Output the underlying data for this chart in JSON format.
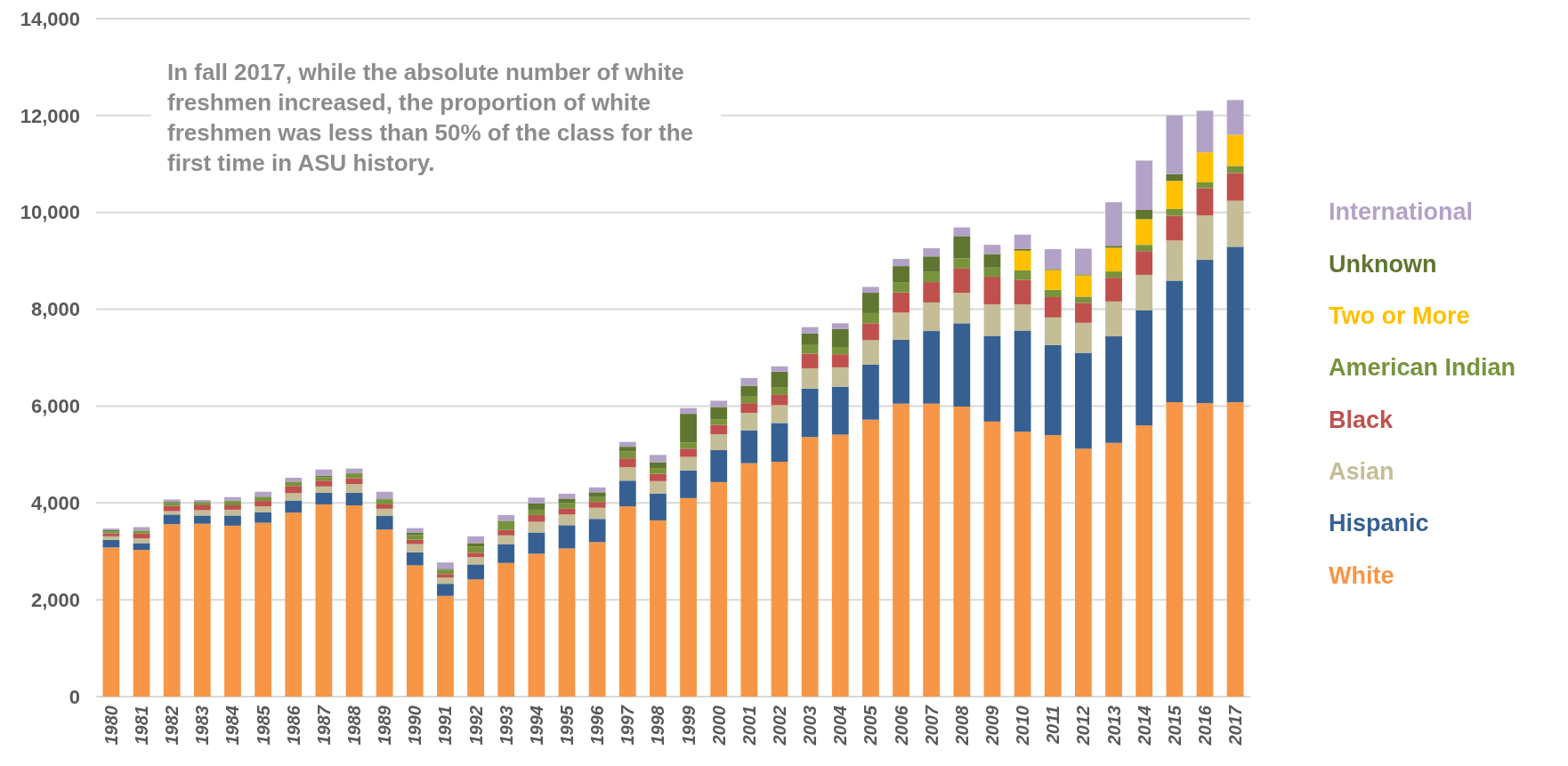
{
  "chart_data": {
    "type": "bar",
    "stacked": true,
    "categories": [
      "1980",
      "1981",
      "1982",
      "1983",
      "1984",
      "1985",
      "1986",
      "1987",
      "1988",
      "1989",
      "1990",
      "1991",
      "1992",
      "1993",
      "1994",
      "1995",
      "1996",
      "1997",
      "1998",
      "1999",
      "2000",
      "2001",
      "2002",
      "2003",
      "2004",
      "2005",
      "2006",
      "2007",
      "2008",
      "2009",
      "2010",
      "2011",
      "2012",
      "2013",
      "2014",
      "2015",
      "2016",
      "2017"
    ],
    "series": [
      {
        "name": "White",
        "color": "#f79646",
        "values": [
          3080,
          3030,
          3560,
          3570,
          3530,
          3590,
          3800,
          3970,
          3950,
          3450,
          2710,
          2080,
          2420,
          2760,
          2950,
          3060,
          3190,
          3930,
          3640,
          4100,
          4430,
          4820,
          4850,
          5360,
          5410,
          5720,
          6050,
          6050,
          5990,
          5680,
          5470,
          5400,
          5120,
          5240,
          5600,
          6080,
          6060,
          6080
        ]
      },
      {
        "name": "Hispanic",
        "color": "#376092",
        "values": [
          160,
          140,
          200,
          170,
          210,
          220,
          250,
          240,
          260,
          280,
          270,
          250,
          310,
          390,
          440,
          480,
          480,
          530,
          550,
          570,
          660,
          680,
          800,
          1000,
          990,
          1140,
          1320,
          1500,
          1720,
          1770,
          2090,
          1860,
          1980,
          2200,
          2380,
          2510,
          2960,
          3210
        ]
      },
      {
        "name": "Asian",
        "color": "#c4bd97",
        "values": [
          70,
          100,
          70,
          110,
          120,
          120,
          150,
          130,
          180,
          150,
          170,
          130,
          150,
          180,
          220,
          220,
          230,
          280,
          260,
          280,
          330,
          360,
          370,
          420,
          400,
          500,
          560,
          590,
          630,
          650,
          540,
          570,
          620,
          720,
          730,
          830,
          920,
          950
        ]
      },
      {
        "name": "Black",
        "color": "#c0504d",
        "values": [
          60,
          100,
          110,
          100,
          90,
          110,
          150,
          120,
          120,
          90,
          90,
          70,
          90,
          110,
          140,
          120,
          120,
          180,
          150,
          170,
          190,
          200,
          210,
          300,
          270,
          350,
          420,
          420,
          500,
          570,
          510,
          420,
          410,
          490,
          490,
          510,
          560,
          570
        ]
      },
      {
        "name": "American Indian",
        "color": "#77933c",
        "values": [
          40,
          60,
          60,
          50,
          80,
          80,
          80,
          70,
          100,
          100,
          100,
          90,
          130,
          180,
          110,
          120,
          100,
          140,
          120,
          130,
          120,
          150,
          150,
          180,
          150,
          210,
          210,
          210,
          210,
          190,
          190,
          150,
          130,
          130,
          130,
          140,
          120,
          150
        ]
      },
      {
        "name": "Two or More",
        "color": "#ffc000",
        "values": [
          null,
          null,
          null,
          null,
          null,
          null,
          null,
          null,
          null,
          null,
          null,
          null,
          null,
          null,
          null,
          null,
          null,
          null,
          null,
          null,
          null,
          null,
          null,
          null,
          null,
          null,
          null,
          null,
          null,
          null,
          410,
          410,
          440,
          490,
          530,
          580,
          620,
          640
        ]
      },
      {
        "name": "Unknown",
        "color": "#5f7530",
        "values": [
          30,
          null,
          20,
          20,
          20,
          10,
          10,
          30,
          null,
          20,
          40,
          20,
          70,
          10,
          130,
          90,
          100,
          100,
          120,
          590,
          250,
          210,
          330,
          240,
          370,
          420,
          330,
          320,
          460,
          280,
          40,
          20,
          20,
          40,
          190,
          140,
          null,
          null
        ]
      },
      {
        "name": "International",
        "color": "#b3a2c7",
        "values": [
          30,
          70,
          50,
          40,
          70,
          100,
          80,
          130,
          100,
          140,
          100,
          130,
          140,
          120,
          120,
          100,
          100,
          100,
          150,
          120,
          130,
          160,
          110,
          130,
          120,
          120,
          150,
          170,
          180,
          190,
          290,
          410,
          530,
          900,
          1020,
          1210,
          860,
          720
        ]
      }
    ],
    "ylim": [
      0,
      14000
    ],
    "yticks": [
      {
        "value": 0,
        "label": "0"
      },
      {
        "value": 2000,
        "label": "2,000"
      },
      {
        "value": 4000,
        "label": "4,000"
      },
      {
        "value": 6000,
        "label": "6,000"
      },
      {
        "value": 8000,
        "label": "8,000"
      },
      {
        "value": 10000,
        "label": "10,000"
      },
      {
        "value": 12000,
        "label": "12,000"
      },
      {
        "value": 14000,
        "label": "14,000"
      }
    ],
    "grid": "y",
    "legend": "right",
    "annotations": [
      "In fall 2017, while the absolute number of white freshmen increased, the proportion of white freshmen was less than 50% of the class for the first time in ASU history."
    ]
  }
}
